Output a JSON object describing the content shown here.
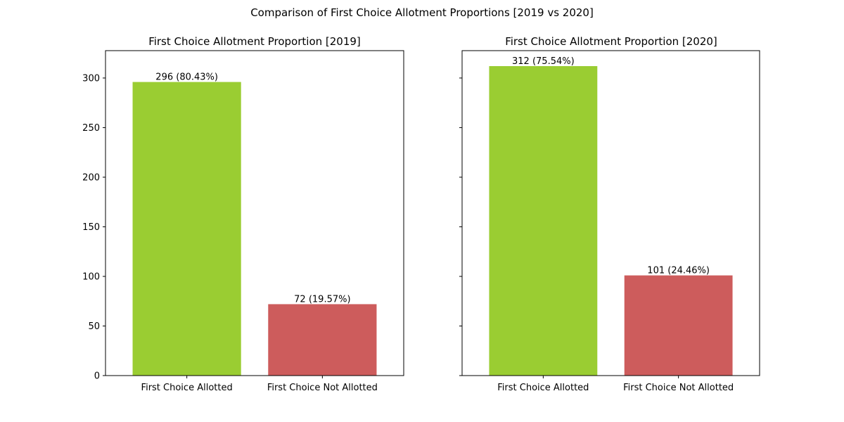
{
  "figure": {
    "suptitle": "Comparison of First Choice Allotment Proportions [2019 vs 2020]"
  },
  "chart_data": [
    {
      "type": "bar",
      "title": "First Choice Allotment Proportion [2019]",
      "categories": [
        "First Choice Allotted",
        "First Choice Not Allotted"
      ],
      "values": [
        296,
        72
      ],
      "labels": [
        "296 (80.43%)",
        "72 (19.57%)"
      ],
      "colors": [
        "#9acd32",
        "#cd5c5c"
      ],
      "xlabel": "",
      "ylabel": "",
      "ylim": [
        0,
        327.6
      ],
      "yticks": [
        0,
        50,
        100,
        150,
        200,
        250,
        300
      ],
      "grid": false
    },
    {
      "type": "bar",
      "title": "First Choice Allotment Proportion [2020]",
      "categories": [
        "First Choice Allotted",
        "First Choice Not Allotted"
      ],
      "values": [
        312,
        101
      ],
      "labels": [
        "312 (75.54%)",
        "101 (24.46%)"
      ],
      "colors": [
        "#9acd32",
        "#cd5c5c"
      ],
      "xlabel": "",
      "ylabel": "",
      "ylim": [
        0,
        327.6
      ],
      "yticks": [
        0,
        50,
        100,
        150,
        200,
        250,
        300
      ],
      "show_ytick_labels": false,
      "grid": false
    }
  ]
}
